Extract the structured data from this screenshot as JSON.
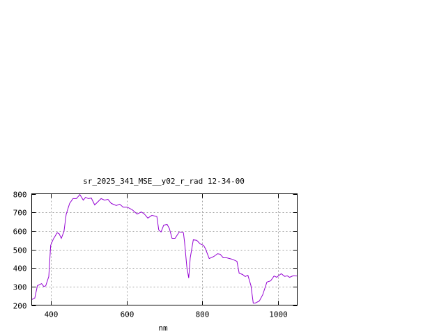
{
  "chart_data": {
    "type": "line",
    "title": "sr_2025_341_MSE__y02_r_rad 12-34-00",
    "xlabel": "nm",
    "ylabel": "",
    "xlim": [
      350,
      1050
    ],
    "ylim": [
      200,
      800
    ],
    "xticks": [
      400,
      600,
      800,
      1000
    ],
    "yticks": [
      200,
      300,
      400,
      500,
      600,
      700,
      800
    ],
    "grid": true,
    "legend": "none",
    "colors": {
      "series": "#9400d3",
      "grid": "#a0a0a0",
      "axes": "#000000"
    },
    "series": [
      {
        "x": [
          350,
          358,
          365,
          376,
          382,
          387,
          395,
          400,
          407,
          417,
          422,
          428,
          435,
          441,
          450,
          459,
          468,
          477,
          486,
          492,
          499,
          507,
          516,
          533,
          542,
          551,
          560,
          573,
          582,
          591,
          602,
          615,
          628,
          639,
          647,
          656,
          667,
          680,
          685,
          691,
          698,
          707,
          713,
          720,
          728,
          739,
          750,
          753,
          759,
          764,
          768,
          776,
          785,
          794,
          803,
          808,
          818,
          830,
          840,
          847,
          855,
          864,
          879,
          891,
          897,
          906,
          913,
          920,
          928,
          934,
          939,
          950,
          959,
          970,
          980,
          989,
          996,
          1002,
          1008,
          1017,
          1024,
          1030,
          1039,
          1050
        ],
        "y": [
          230,
          238,
          305,
          316,
          300,
          304,
          354,
          522,
          556,
          590,
          586,
          560,
          597,
          690,
          748,
          774,
          774,
          796,
          766,
          781,
          774,
          777,
          740,
          774,
          766,
          770,
          748,
          737,
          744,
          728,
          728,
          714,
          691,
          702,
          691,
          669,
          684,
          677,
          605,
          594,
          631,
          635,
          612,
          560,
          560,
          594,
          590,
          541,
          406,
          346,
          455,
          552,
          549,
          530,
          522,
          504,
          451,
          462,
          477,
          474,
          455,
          455,
          447,
          436,
          372,
          365,
          354,
          361,
          305,
          211,
          211,
          222,
          256,
          324,
          331,
          357,
          350,
          361,
          369,
          355,
          358,
          350,
          358,
          357
        ]
      }
    ]
  }
}
